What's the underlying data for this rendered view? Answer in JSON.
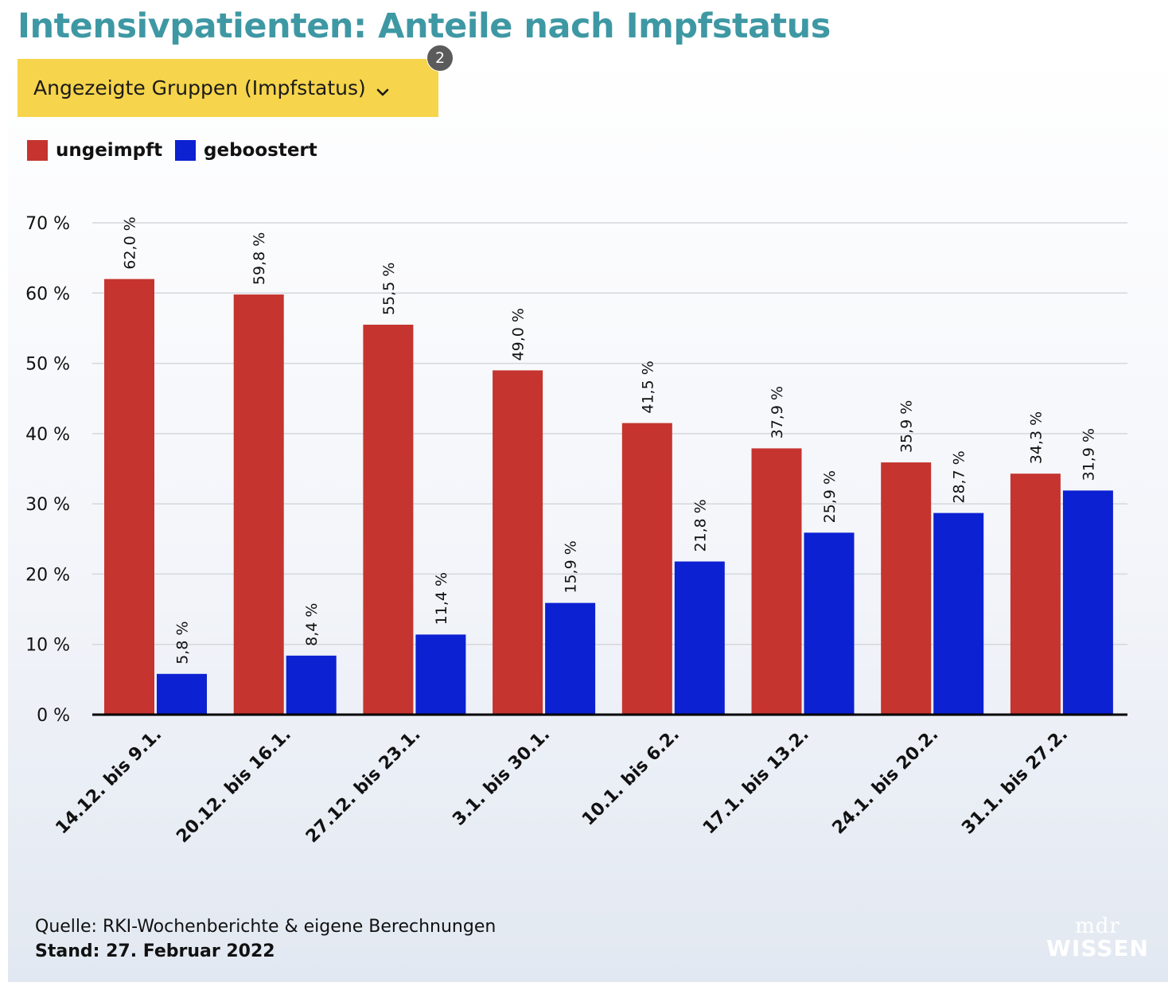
{
  "title": "Intensivpatienten: Anteile nach Impfstatus",
  "group_selector": {
    "label": "Angezeigte Gruppen (Impfstatus)",
    "count": "2",
    "icon": "chevron-down-icon"
  },
  "legend": [
    {
      "label": "ungeimpft",
      "color": "#c5342f"
    },
    {
      "label": "geboostert",
      "color": "#0c21d1"
    }
  ],
  "footer": {
    "source": "Quelle: RKI-Wochenberichte & eigene Berechnungen",
    "stand": "Stand: 27. Februar 2022"
  },
  "logo": {
    "top": "mdr",
    "bottom": "WISSEN"
  },
  "chart_data": {
    "type": "bar",
    "categories": [
      "14.12. bis 9.1.",
      "20.12. bis 16.1.",
      "27.12. bis 23.1.",
      "3.1. bis 30.1.",
      "10.1. bis 6.2.",
      "17.1. bis 13.2.",
      "24.1. bis 20.2.",
      "31.1. bis 27.2."
    ],
    "series": [
      {
        "name": "ungeimpft",
        "color": "#c5342f",
        "values": [
          62.0,
          59.8,
          55.5,
          49.0,
          41.5,
          37.9,
          35.9,
          34.3
        ]
      },
      {
        "name": "geboostert",
        "color": "#0c21d1",
        "values": [
          5.8,
          8.4,
          11.4,
          15.9,
          21.8,
          25.9,
          28.7,
          31.9
        ]
      }
    ],
    "value_labels": [
      [
        "62,0 %",
        "59,8 %",
        "55,5 %",
        "49,0 %",
        "41,5 %",
        "37,9 %",
        "35,9 %",
        "34,3 %"
      ],
      [
        "5,8 %",
        "8,4 %",
        "11,4 %",
        "15,9 %",
        "21,8 %",
        "25,9 %",
        "28,7 %",
        "31,9 %"
      ]
    ],
    "yticks": [
      0,
      10,
      20,
      30,
      40,
      50,
      60,
      70
    ],
    "ytick_labels": [
      "0 %",
      "10 %",
      "20 %",
      "30 %",
      "40 %",
      "50 %",
      "60 %",
      "70 %"
    ],
    "ylim": [
      0,
      70
    ],
    "grid": true,
    "legend_position": "top-left",
    "xlabel": "",
    "ylabel": ""
  }
}
